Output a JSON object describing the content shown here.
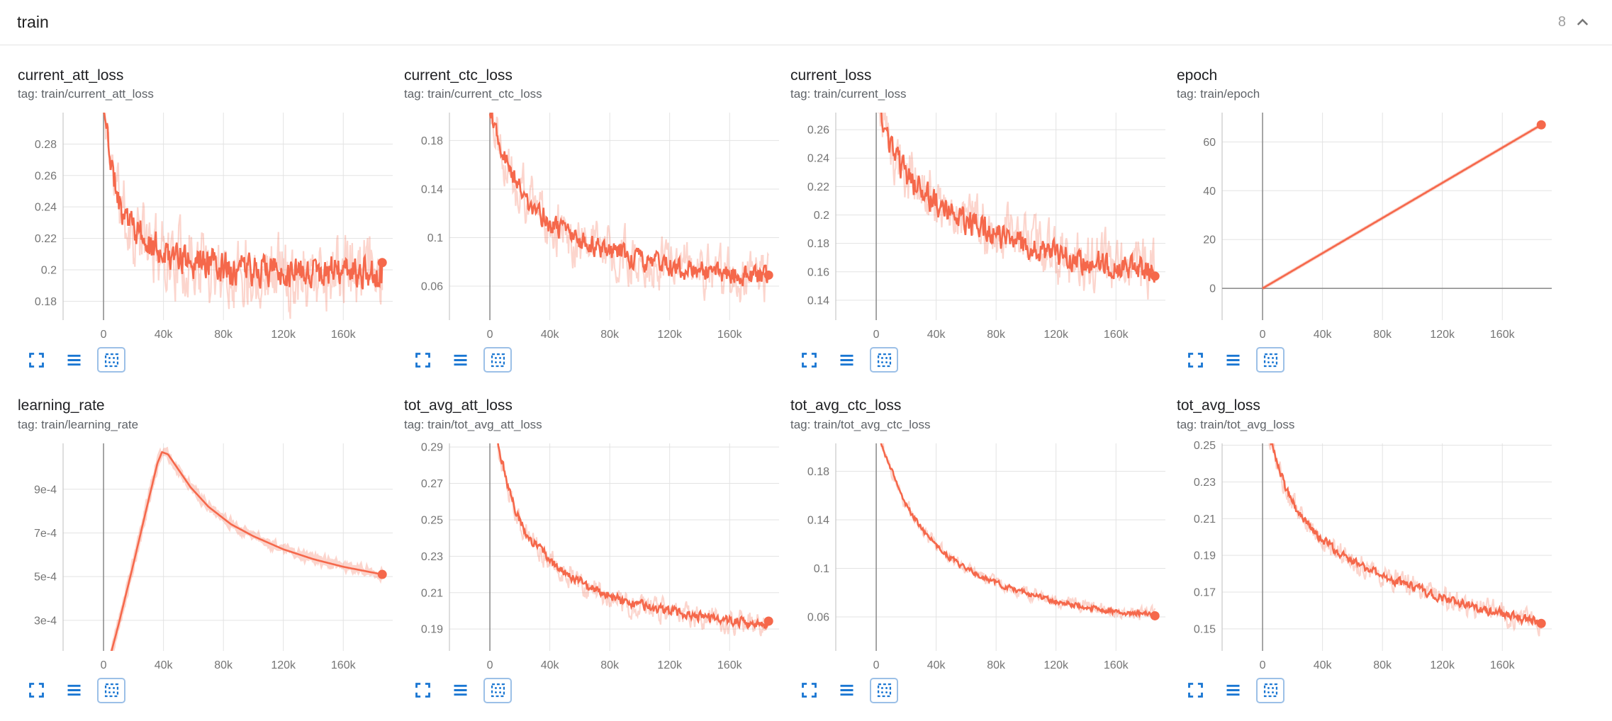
{
  "header": {
    "group_label": "train",
    "count": "8"
  },
  "style": {
    "accent": "#f5684b",
    "icon_color": "#1976d2",
    "grid_color": "#e3e3e3",
    "axis_color": "#c9c9c9",
    "zero_line_color": "#8f8f8f",
    "tick_label_color": "#757575"
  },
  "icon_names": [
    "chevron-up-icon",
    "expand-icon",
    "data-table-icon",
    "fit-domain-icon"
  ],
  "chart_data": [
    {
      "type": "line",
      "title": "current_att_loss",
      "tag": "tag: train/current_att_loss",
      "xlim": [
        -27000,
        193000
      ],
      "ylim": [
        0.168,
        0.3
      ],
      "x_ticks": [
        {
          "v": 0,
          "label": "0"
        },
        {
          "v": 40000,
          "label": "40k"
        },
        {
          "v": 80000,
          "label": "80k"
        },
        {
          "v": 120000,
          "label": "120k"
        },
        {
          "v": 160000,
          "label": "160k"
        }
      ],
      "y_ticks": [
        {
          "v": 0.18,
          "label": "0.18"
        },
        {
          "v": 0.2,
          "label": "0.2"
        },
        {
          "v": 0.22,
          "label": "0.22"
        },
        {
          "v": 0.24,
          "label": "0.24"
        },
        {
          "v": 0.26,
          "label": "0.26"
        },
        {
          "v": 0.28,
          "label": "0.28"
        }
      ],
      "zero_x_line": true,
      "zero_y_line": false,
      "series": [
        {
          "name": "train",
          "color": "#f5684b",
          "seed": 11,
          "smooth_noise": 0.0085,
          "raw_noise": 0.02,
          "raw_width": 2.2,
          "end_dot": true,
          "final_value": 0.2,
          "trend": [
            [
              0,
              0.3
            ],
            [
              3000,
              0.284
            ],
            [
              6000,
              0.262
            ],
            [
              10000,
              0.246
            ],
            [
              15000,
              0.233
            ],
            [
              20000,
              0.226
            ],
            [
              28000,
              0.218
            ],
            [
              36000,
              0.213
            ],
            [
              48000,
              0.208
            ],
            [
              60000,
              0.205
            ],
            [
              76000,
              0.203
            ],
            [
              92000,
              0.201
            ],
            [
              110000,
              0.2
            ],
            [
              130000,
              0.199
            ],
            [
              150000,
              0.199
            ],
            [
              168000,
              0.198
            ],
            [
              186000,
              0.2
            ]
          ]
        }
      ]
    },
    {
      "type": "line",
      "title": "current_ctc_loss",
      "tag": "tag: train/current_ctc_loss",
      "xlim": [
        -27000,
        193000
      ],
      "ylim": [
        0.032,
        0.203
      ],
      "x_ticks": [
        {
          "v": 0,
          "label": "0"
        },
        {
          "v": 40000,
          "label": "40k"
        },
        {
          "v": 80000,
          "label": "80k"
        },
        {
          "v": 120000,
          "label": "120k"
        },
        {
          "v": 160000,
          "label": "160k"
        }
      ],
      "y_ticks": [
        {
          "v": 0.06,
          "label": "0.06"
        },
        {
          "v": 0.1,
          "label": "0.1"
        },
        {
          "v": 0.14,
          "label": "0.14"
        },
        {
          "v": 0.18,
          "label": "0.18"
        }
      ],
      "zero_x_line": true,
      "zero_y_line": false,
      "series": [
        {
          "name": "train",
          "color": "#f5684b",
          "seed": 22,
          "smooth_noise": 0.0075,
          "raw_noise": 0.018,
          "raw_width": 2.2,
          "end_dot": true,
          "final_value": 0.067,
          "trend": [
            [
              0,
              0.206
            ],
            [
              3000,
              0.196
            ],
            [
              6000,
              0.183
            ],
            [
              10000,
              0.168
            ],
            [
              15000,
              0.152
            ],
            [
              20000,
              0.14
            ],
            [
              28000,
              0.126
            ],
            [
              36000,
              0.117
            ],
            [
              48000,
              0.106
            ],
            [
              60000,
              0.098
            ],
            [
              76000,
              0.09
            ],
            [
              92000,
              0.084
            ],
            [
              110000,
              0.079
            ],
            [
              130000,
              0.074
            ],
            [
              150000,
              0.071
            ],
            [
              168000,
              0.069
            ],
            [
              186000,
              0.067
            ]
          ]
        }
      ]
    },
    {
      "type": "line",
      "title": "current_loss",
      "tag": "tag: train/current_loss",
      "xlim": [
        -27000,
        193000
      ],
      "ylim": [
        0.126,
        0.272
      ],
      "x_ticks": [
        {
          "v": 0,
          "label": "0"
        },
        {
          "v": 40000,
          "label": "40k"
        },
        {
          "v": 80000,
          "label": "80k"
        },
        {
          "v": 120000,
          "label": "120k"
        },
        {
          "v": 160000,
          "label": "160k"
        }
      ],
      "y_ticks": [
        {
          "v": 0.14,
          "label": "0.14"
        },
        {
          "v": 0.16,
          "label": "0.16"
        },
        {
          "v": 0.18,
          "label": "0.18"
        },
        {
          "v": 0.2,
          "label": "0.2"
        },
        {
          "v": 0.22,
          "label": "0.22"
        },
        {
          "v": 0.24,
          "label": "0.24"
        },
        {
          "v": 0.26,
          "label": "0.26"
        }
      ],
      "zero_x_line": true,
      "zero_y_line": false,
      "series": [
        {
          "name": "train",
          "color": "#f5684b",
          "seed": 33,
          "smooth_noise": 0.0075,
          "raw_noise": 0.017,
          "raw_width": 2.2,
          "end_dot": true,
          "final_value": 0.161,
          "trend": [
            [
              0,
              0.286
            ],
            [
              3000,
              0.272
            ],
            [
              6000,
              0.258
            ],
            [
              10000,
              0.246
            ],
            [
              15000,
              0.236
            ],
            [
              20000,
              0.228
            ],
            [
              28000,
              0.219
            ],
            [
              36000,
              0.212
            ],
            [
              48000,
              0.203
            ],
            [
              60000,
              0.196
            ],
            [
              76000,
              0.188
            ],
            [
              92000,
              0.181
            ],
            [
              110000,
              0.175
            ],
            [
              130000,
              0.169
            ],
            [
              150000,
              0.165
            ],
            [
              168000,
              0.163
            ],
            [
              186000,
              0.161
            ]
          ]
        }
      ]
    },
    {
      "type": "line",
      "title": "epoch",
      "tag": "tag: train/epoch",
      "xlim": [
        -27000,
        193000
      ],
      "ylim": [
        -13,
        72
      ],
      "x_ticks": [
        {
          "v": 0,
          "label": "0"
        },
        {
          "v": 40000,
          "label": "40k"
        },
        {
          "v": 80000,
          "label": "80k"
        },
        {
          "v": 120000,
          "label": "120k"
        },
        {
          "v": 160000,
          "label": "160k"
        }
      ],
      "y_ticks": [
        {
          "v": 0,
          "label": "0"
        },
        {
          "v": 20,
          "label": "20"
        },
        {
          "v": 40,
          "label": "40"
        },
        {
          "v": 60,
          "label": "60"
        }
      ],
      "zero_x_line": true,
      "zero_y_line": true,
      "series": [
        {
          "name": "train",
          "color": "#f5684b",
          "seed": 44,
          "smooth_noise": 0,
          "raw_noise": 0,
          "raw_width": 5,
          "end_dot": true,
          "final_value": 67,
          "trend": [
            [
              0,
              0
            ],
            [
              186000,
              67
            ]
          ]
        }
      ]
    },
    {
      "type": "line",
      "title": "learning_rate",
      "tag": "tag: train/learning_rate",
      "xlim": [
        -27000,
        193000
      ],
      "ylim": [
        0.00016,
        0.00111
      ],
      "x_ticks": [
        {
          "v": 0,
          "label": "0"
        },
        {
          "v": 40000,
          "label": "40k"
        },
        {
          "v": 80000,
          "label": "80k"
        },
        {
          "v": 120000,
          "label": "120k"
        },
        {
          "v": 160000,
          "label": "160k"
        }
      ],
      "y_ticks": [
        {
          "v": 0.0003,
          "label": "3e-4"
        },
        {
          "v": 0.0005,
          "label": "5e-4"
        },
        {
          "v": 0.0007,
          "label": "7e-4"
        },
        {
          "v": 0.0009,
          "label": "9e-4"
        }
      ],
      "zero_x_line": true,
      "zero_y_line": false,
      "series": [
        {
          "name": "train",
          "color": "#f5684b",
          "seed": 55,
          "smooth_noise": 0,
          "raw_noise": 1.2e-05,
          "raw_width": 6,
          "end_dot": true,
          "final_value": 0.00051,
          "trend": [
            [
              0,
              2e-05
            ],
            [
              10000,
              0.00028
            ],
            [
              20000,
              0.00056
            ],
            [
              30000,
              0.00085
            ],
            [
              36000,
              0.00102
            ],
            [
              39000,
              0.00107
            ],
            [
              43000,
              0.00106
            ],
            [
              50000,
              0.00099
            ],
            [
              58000,
              0.00091
            ],
            [
              70000,
              0.00082
            ],
            [
              85000,
              0.00074
            ],
            [
              100000,
              0.000685
            ],
            [
              120000,
              0.000625
            ],
            [
              140000,
              0.00058
            ],
            [
              160000,
              0.000545
            ],
            [
              186000,
              0.00051
            ]
          ]
        }
      ]
    },
    {
      "type": "line",
      "title": "tot_avg_att_loss",
      "tag": "tag: train/tot_avg_att_loss",
      "xlim": [
        -27000,
        193000
      ],
      "ylim": [
        0.178,
        0.292
      ],
      "x_ticks": [
        {
          "v": 0,
          "label": "0"
        },
        {
          "v": 40000,
          "label": "40k"
        },
        {
          "v": 80000,
          "label": "80k"
        },
        {
          "v": 120000,
          "label": "120k"
        },
        {
          "v": 160000,
          "label": "160k"
        }
      ],
      "y_ticks": [
        {
          "v": 0.19,
          "label": "0.19"
        },
        {
          "v": 0.21,
          "label": "0.21"
        },
        {
          "v": 0.23,
          "label": "0.23"
        },
        {
          "v": 0.25,
          "label": "0.25"
        },
        {
          "v": 0.27,
          "label": "0.27"
        },
        {
          "v": 0.29,
          "label": "0.29"
        }
      ],
      "zero_x_line": true,
      "zero_y_line": false,
      "series": [
        {
          "name": "train",
          "color": "#f5684b",
          "seed": 66,
          "smooth_noise": 0.0022,
          "raw_noise": 0.0055,
          "raw_width": 2.2,
          "end_dot": true,
          "final_value": 0.192,
          "trend": [
            [
              0,
              0.315
            ],
            [
              4000,
              0.298
            ],
            [
              8000,
              0.282
            ],
            [
              12000,
              0.268
            ],
            [
              16000,
              0.258
            ],
            [
              20000,
              0.25
            ],
            [
              26000,
              0.241
            ],
            [
              32000,
              0.235
            ],
            [
              40000,
              0.228
            ],
            [
              50000,
              0.221
            ],
            [
              60000,
              0.216
            ],
            [
              72000,
              0.211
            ],
            [
              84000,
              0.207
            ],
            [
              96000,
              0.204
            ],
            [
              110000,
              0.201
            ],
            [
              124000,
              0.199
            ],
            [
              140000,
              0.197
            ],
            [
              156000,
              0.195
            ],
            [
              170000,
              0.194
            ],
            [
              186000,
              0.192
            ]
          ]
        }
      ]
    },
    {
      "type": "line",
      "title": "tot_avg_ctc_loss",
      "tag": "tag: train/tot_avg_ctc_loss",
      "xlim": [
        -27000,
        193000
      ],
      "ylim": [
        0.032,
        0.203
      ],
      "x_ticks": [
        {
          "v": 0,
          "label": "0"
        },
        {
          "v": 40000,
          "label": "40k"
        },
        {
          "v": 80000,
          "label": "80k"
        },
        {
          "v": 120000,
          "label": "120k"
        },
        {
          "v": 160000,
          "label": "160k"
        }
      ],
      "y_ticks": [
        {
          "v": 0.06,
          "label": "0.06"
        },
        {
          "v": 0.1,
          "label": "0.1"
        },
        {
          "v": 0.14,
          "label": "0.14"
        },
        {
          "v": 0.18,
          "label": "0.18"
        }
      ],
      "zero_x_line": true,
      "zero_y_line": false,
      "series": [
        {
          "name": "train",
          "color": "#f5684b",
          "seed": 77,
          "smooth_noise": 0.0018,
          "raw_noise": 0.0045,
          "raw_width": 2.2,
          "end_dot": true,
          "final_value": 0.062,
          "trend": [
            [
              0,
              0.215
            ],
            [
              4000,
              0.202
            ],
            [
              8000,
              0.188
            ],
            [
              12000,
              0.175
            ],
            [
              16000,
              0.163
            ],
            [
              20000,
              0.153
            ],
            [
              26000,
              0.141
            ],
            [
              32000,
              0.13
            ],
            [
              40000,
              0.119
            ],
            [
              50000,
              0.108
            ],
            [
              60000,
              0.1
            ],
            [
              72000,
              0.092
            ],
            [
              84000,
              0.086
            ],
            [
              96000,
              0.081
            ],
            [
              110000,
              0.076
            ],
            [
              124000,
              0.072
            ],
            [
              140000,
              0.068
            ],
            [
              156000,
              0.065
            ],
            [
              170000,
              0.063
            ],
            [
              186000,
              0.062
            ]
          ]
        }
      ]
    },
    {
      "type": "line",
      "title": "tot_avg_loss",
      "tag": "tag: train/tot_avg_loss",
      "xlim": [
        -27000,
        193000
      ],
      "ylim": [
        0.138,
        0.251
      ],
      "x_ticks": [
        {
          "v": 0,
          "label": "0"
        },
        {
          "v": 40000,
          "label": "40k"
        },
        {
          "v": 80000,
          "label": "80k"
        },
        {
          "v": 120000,
          "label": "120k"
        },
        {
          "v": 160000,
          "label": "160k"
        }
      ],
      "y_ticks": [
        {
          "v": 0.15,
          "label": "0.15"
        },
        {
          "v": 0.17,
          "label": "0.17"
        },
        {
          "v": 0.19,
          "label": "0.19"
        },
        {
          "v": 0.21,
          "label": "0.21"
        },
        {
          "v": 0.23,
          "label": "0.23"
        },
        {
          "v": 0.25,
          "label": "0.25"
        }
      ],
      "zero_x_line": true,
      "zero_y_line": false,
      "series": [
        {
          "name": "train",
          "color": "#f5684b",
          "seed": 88,
          "smooth_noise": 0.002,
          "raw_noise": 0.005,
          "raw_width": 2.2,
          "end_dot": true,
          "final_value": 0.154,
          "trend": [
            [
              0,
              0.27
            ],
            [
              4000,
              0.258
            ],
            [
              8000,
              0.245
            ],
            [
              12000,
              0.234
            ],
            [
              16000,
              0.226
            ],
            [
              20000,
              0.219
            ],
            [
              26000,
              0.211
            ],
            [
              32000,
              0.205
            ],
            [
              40000,
              0.198
            ],
            [
              50000,
              0.192
            ],
            [
              60000,
              0.187
            ],
            [
              72000,
              0.182
            ],
            [
              84000,
              0.178
            ],
            [
              96000,
              0.174
            ],
            [
              110000,
              0.17
            ],
            [
              124000,
              0.166
            ],
            [
              140000,
              0.162
            ],
            [
              156000,
              0.159
            ],
            [
              170000,
              0.156
            ],
            [
              186000,
              0.154
            ]
          ]
        }
      ]
    }
  ]
}
